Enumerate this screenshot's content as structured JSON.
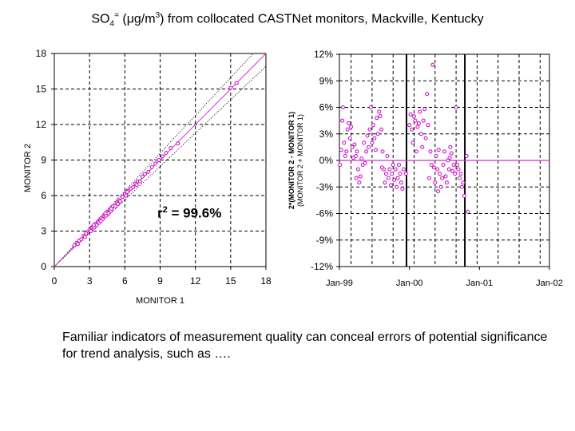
{
  "title": {
    "part1": "SO",
    "sub": "4",
    "sup": "=",
    "part2": " (",
    "mu": "μ",
    "part3": "g/m",
    "sup2": "3",
    "part4": ") from collocated CASTNet monitors, Mackville, Kentucky"
  },
  "annotation": {
    "r": "r",
    "sup": "2",
    "rest": " = 99.6%"
  },
  "caption": "Familiar indicators of measurement quality can conceal errors of potential significance for trend analysis, such as ….",
  "colors": {
    "series": "#cc00cc",
    "line": "#cc33cc",
    "axis": "#000000",
    "grid": "#000000"
  },
  "chart_data": [
    {
      "type": "scatter",
      "xlabel": "MONITOR 1",
      "ylabel": "MONITOR 2",
      "xlim": [
        0,
        18
      ],
      "ylim": [
        0,
        18
      ],
      "xticks": [
        "0",
        "3",
        "6",
        "9",
        "12",
        "15",
        "18"
      ],
      "yticks": [
        "0",
        "3",
        "6",
        "9",
        "12",
        "15",
        "18"
      ],
      "grid": true,
      "grid_style": "dashed",
      "reference_lines": [
        "1:1 line",
        "dotted bounds"
      ],
      "points": [
        [
          1.7,
          1.8
        ],
        [
          1.9,
          2.0
        ],
        [
          2.1,
          2.2
        ],
        [
          2.3,
          2.3
        ],
        [
          2.5,
          2.6
        ],
        [
          2.6,
          2.5
        ],
        [
          2.8,
          2.9
        ],
        [
          3.0,
          3.1
        ],
        [
          3.1,
          3.0
        ],
        [
          3.2,
          3.3
        ],
        [
          3.3,
          3.4
        ],
        [
          3.4,
          3.3
        ],
        [
          3.5,
          3.6
        ],
        [
          3.6,
          3.5
        ],
        [
          3.7,
          3.8
        ],
        [
          3.8,
          3.7
        ],
        [
          3.9,
          4.0
        ],
        [
          4.0,
          4.1
        ],
        [
          4.1,
          4.0
        ],
        [
          4.2,
          4.3
        ],
        [
          4.3,
          4.4
        ],
        [
          4.4,
          4.3
        ],
        [
          4.5,
          4.6
        ],
        [
          4.6,
          4.5
        ],
        [
          4.7,
          4.8
        ],
        [
          4.8,
          4.7
        ],
        [
          4.9,
          5.0
        ],
        [
          5.0,
          5.1
        ],
        [
          5.2,
          5.1
        ],
        [
          5.3,
          5.4
        ],
        [
          5.5,
          5.6
        ],
        [
          5.6,
          5.5
        ],
        [
          5.8,
          5.9
        ],
        [
          6.0,
          6.1
        ],
        [
          6.1,
          6.0
        ],
        [
          6.3,
          6.4
        ],
        [
          6.5,
          6.6
        ],
        [
          6.7,
          6.7
        ],
        [
          6.9,
          7.0
        ],
        [
          7.1,
          7.2
        ],
        [
          7.3,
          7.2
        ],
        [
          7.5,
          7.6
        ],
        [
          7.7,
          7.8
        ],
        [
          8.0,
          8.0
        ],
        [
          8.3,
          8.4
        ],
        [
          8.6,
          8.7
        ],
        [
          8.9,
          9.0
        ],
        [
          9.2,
          9.3
        ],
        [
          9.5,
          9.6
        ],
        [
          9.9,
          10.0
        ],
        [
          10.5,
          10.4
        ],
        [
          15.0,
          15.1
        ],
        [
          15.5,
          15.5
        ],
        [
          2.0,
          1.9
        ],
        [
          2.7,
          2.8
        ],
        [
          3.35,
          3.5
        ],
        [
          3.95,
          3.85
        ],
        [
          4.35,
          4.5
        ],
        [
          4.85,
          4.9
        ],
        [
          5.4,
          5.3
        ],
        [
          6.2,
          6.3
        ],
        [
          7.0,
          6.9
        ]
      ]
    },
    {
      "type": "scatter",
      "ylabel_main": "2*(MONITOR 2 - MONITOR 1)",
      "ylabel_sub": "(MONITOR 2 + MONITOR 1)",
      "xticks": [
        "Jan-99",
        "Jan-00",
        "Jan-01",
        "Jan-02"
      ],
      "yticks": [
        "12%",
        "9%",
        "6%",
        "3%",
        "0%",
        "-3%",
        "-6%",
        "-9%",
        "-12%"
      ],
      "ylim": [
        -12,
        12
      ],
      "xlim": [
        0,
        36
      ],
      "grid": true,
      "grid_style": "dashed",
      "vertical_markers": [
        11.5,
        21.5
      ],
      "zero_line": 0,
      "points": [
        [
          0.1,
          -0.5
        ],
        [
          0.3,
          1.2
        ],
        [
          0.5,
          4.5
        ],
        [
          0.6,
          6.0
        ],
        [
          0.8,
          2.0
        ],
        [
          1.0,
          0.5
        ],
        [
          1.2,
          1.0
        ],
        [
          1.4,
          3.5
        ],
        [
          1.6,
          4.2
        ],
        [
          1.8,
          2.5
        ],
        [
          2.0,
          3.8
        ],
        [
          2.2,
          1.5
        ],
        [
          2.4,
          0.3
        ],
        [
          2.6,
          1.8
        ],
        [
          2.8,
          0.5
        ],
        [
          3.0,
          1.0
        ],
        [
          3.2,
          -1.0
        ],
        [
          3.4,
          -2.5
        ],
        [
          3.6,
          -1.8
        ],
        [
          3.8,
          0.2
        ],
        [
          4.0,
          -0.5
        ],
        [
          4.2,
          2.0
        ],
        [
          4.4,
          -0.3
        ],
        [
          4.6,
          1.0
        ],
        [
          4.8,
          2.8
        ],
        [
          5.0,
          1.5
        ],
        [
          5.2,
          3.5
        ],
        [
          5.4,
          6.0
        ],
        [
          5.6,
          2.0
        ],
        [
          5.8,
          4.0
        ],
        [
          6.0,
          2.5
        ],
        [
          6.2,
          1.2
        ],
        [
          6.4,
          4.8
        ],
        [
          6.6,
          3.0
        ],
        [
          6.8,
          5.5
        ],
        [
          7.0,
          5.0
        ],
        [
          7.2,
          3.5
        ],
        [
          7.4,
          1.0
        ],
        [
          7.6,
          -1.0
        ],
        [
          7.8,
          -2.5
        ],
        [
          8.0,
          -1.5
        ],
        [
          8.2,
          0.5
        ],
        [
          8.4,
          -2.0
        ],
        [
          8.6,
          -1.0
        ],
        [
          8.8,
          -2.8
        ],
        [
          9.0,
          -1.5
        ],
        [
          9.2,
          -0.5
        ],
        [
          9.4,
          -2.2
        ],
        [
          9.6,
          -1.0
        ],
        [
          9.8,
          -3.0
        ],
        [
          10.0,
          -2.0
        ],
        [
          10.2,
          -0.5
        ],
        [
          10.4,
          -1.5
        ],
        [
          10.6,
          -2.5
        ],
        [
          10.8,
          -3.2
        ],
        [
          11.0,
          -1.0
        ],
        [
          12.0,
          4.0
        ],
        [
          12.2,
          5.2
        ],
        [
          12.4,
          3.5
        ],
        [
          12.6,
          2.0
        ],
        [
          12.8,
          5.0
        ],
        [
          13.0,
          4.5
        ],
        [
          13.2,
          1.0
        ],
        [
          13.4,
          3.8
        ],
        [
          13.6,
          4.2
        ],
        [
          13.8,
          5.5
        ],
        [
          14.0,
          3.0
        ],
        [
          14.2,
          1.5
        ],
        [
          14.4,
          4.5
        ],
        [
          14.6,
          5.8
        ],
        [
          14.8,
          2.5
        ],
        [
          15.0,
          7.5
        ],
        [
          15.2,
          4.0
        ],
        [
          15.4,
          -2.0
        ],
        [
          15.6,
          1.0
        ],
        [
          15.8,
          -0.5
        ],
        [
          16.0,
          10.8
        ],
        [
          16.2,
          -0.8
        ],
        [
          16.4,
          -2.5
        ],
        [
          16.6,
          0.5
        ],
        [
          16.8,
          -1.0
        ],
        [
          17.0,
          1.2
        ],
        [
          17.2,
          -1.5
        ],
        [
          17.4,
          -3.0
        ],
        [
          17.6,
          -2.0
        ],
        [
          17.8,
          -0.5
        ],
        [
          18.0,
          1.0
        ],
        [
          18.2,
          -1.8
        ],
        [
          18.4,
          -2.5
        ],
        [
          18.6,
          0.0
        ],
        [
          18.8,
          -1.0
        ],
        [
          19.0,
          1.5
        ],
        [
          19.2,
          0.8
        ],
        [
          19.4,
          -1.2
        ],
        [
          19.6,
          -0.5
        ],
        [
          19.8,
          -1.5
        ],
        [
          20.0,
          6.0
        ],
        [
          20.2,
          -0.5
        ],
        [
          20.4,
          -1.0
        ],
        [
          20.6,
          -2.0
        ],
        [
          20.8,
          -1.5
        ],
        [
          21.0,
          -3.0
        ],
        [
          21.2,
          -2.5
        ],
        [
          21.4,
          -4.0
        ],
        [
          22.0,
          -5.8
        ],
        [
          21.8,
          0.5
        ],
        [
          11.4,
          -1.5
        ],
        [
          2.9,
          -2.0
        ],
        [
          7.3,
          -0.8
        ],
        [
          16.9,
          -3.5
        ],
        [
          18.9,
          0.3
        ]
      ]
    }
  ]
}
